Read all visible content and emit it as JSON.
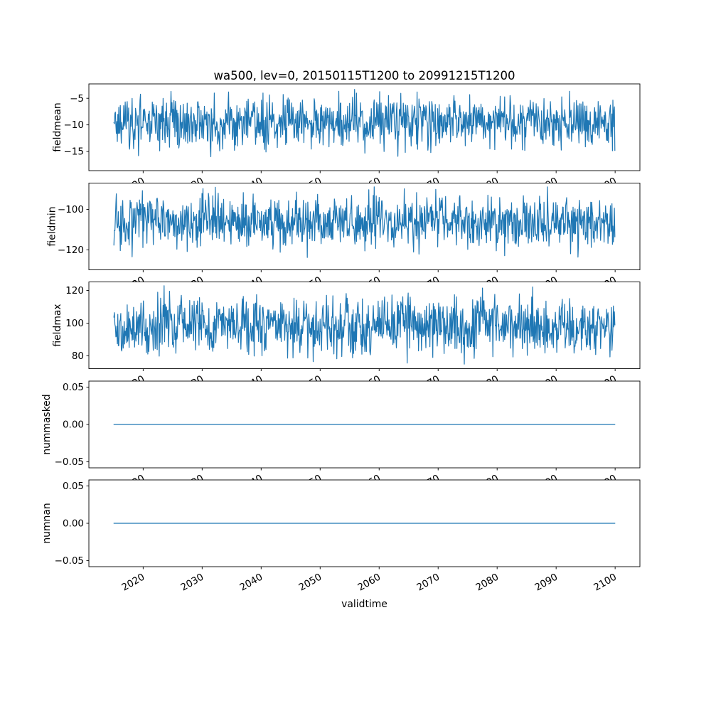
{
  "figure": {
    "title": "wa500, lev=0, 20150115T1200 to 20991215T1200",
    "xlabel": "validtime",
    "background": "#ffffff",
    "line_color": "#1f77b4"
  },
  "chart_data": {
    "type": "line",
    "title": "wa500, lev=0, 20150115T1200 to 20991215T1200",
    "xlabel": "validtime",
    "legend": "none",
    "grid": false,
    "x_axis": {
      "data_start": 2015.04,
      "data_end": 2099.96,
      "points_per_series": 1019,
      "xlim": [
        2010.8,
        2104.2
      ],
      "ticks": [
        2020,
        2030,
        2040,
        2050,
        2060,
        2070,
        2080,
        2090,
        2100
      ],
      "tick_labels": [
        "2020",
        "2030",
        "2040",
        "2050",
        "2060",
        "2070",
        "2080",
        "2090",
        "2100"
      ],
      "tick_rotation_deg": 30
    },
    "subplots": [
      {
        "ylabel": "fieldmean",
        "ylim": [
          -18.6,
          -2.3
        ],
        "yticks": [
          -5,
          -10,
          -15
        ],
        "ytick_labels": [
          "−5",
          "−10",
          "−15"
        ],
        "series": {
          "name": "fieldmean",
          "pattern": "random-noise",
          "mean": -9.5,
          "std": 2.4,
          "min": -17.6,
          "max": -2.5,
          "seed": 1101
        }
      },
      {
        "ylabel": "fieldmin",
        "ylim": [
          -129.8,
          -87.0
        ],
        "yticks": [
          -100,
          -120
        ],
        "ytick_labels": [
          "−100",
          "−120"
        ],
        "series": {
          "name": "fieldmin",
          "pattern": "random-noise",
          "mean": -106.5,
          "std": 6.5,
          "min": -127.0,
          "max": -88.5,
          "seed": 2202
        }
      },
      {
        "ylabel": "fieldmax",
        "ylim": [
          72.2,
          125.2
        ],
        "yticks": [
          120,
          100,
          80
        ],
        "ytick_labels": [
          "120",
          "100",
          "80"
        ],
        "series": {
          "name": "fieldmax",
          "pattern": "random-noise",
          "mean": 98.5,
          "std": 8.5,
          "min": 75.0,
          "max": 123.5,
          "seed": 3303
        }
      },
      {
        "ylabel": "nummasked",
        "ylim": [
          -0.058,
          0.058
        ],
        "yticks": [
          0.05,
          0.0,
          -0.05
        ],
        "ytick_labels": [
          "0.05",
          "0.00",
          "−0.05"
        ],
        "series": {
          "name": "nummasked",
          "pattern": "constant",
          "value": 0.0
        }
      },
      {
        "ylabel": "numnan",
        "ylim": [
          -0.058,
          0.058
        ],
        "yticks": [
          0.05,
          0.0,
          -0.05
        ],
        "ytick_labels": [
          "0.05",
          "0.00",
          "−0.05"
        ],
        "series": {
          "name": "numnan",
          "pattern": "constant",
          "value": 0.0
        }
      }
    ]
  }
}
